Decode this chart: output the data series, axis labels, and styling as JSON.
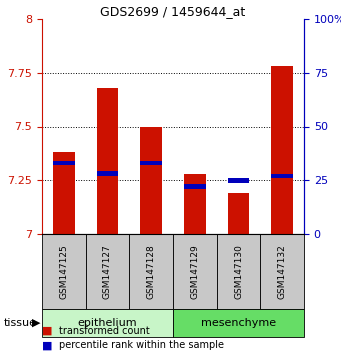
{
  "title": "GDS2699 / 1459644_at",
  "samples": [
    "GSM147125",
    "GSM147127",
    "GSM147128",
    "GSM147129",
    "GSM147130",
    "GSM147132"
  ],
  "red_values": [
    7.38,
    7.68,
    7.5,
    7.28,
    7.19,
    7.78
  ],
  "blue_values": [
    7.33,
    7.28,
    7.33,
    7.22,
    7.25,
    7.27
  ],
  "ylim": [
    7.0,
    8.0
  ],
  "yticks": [
    7.0,
    7.25,
    7.5,
    7.75,
    8.0
  ],
  "ytick_labels": [
    "7",
    "7.25",
    "7.5",
    "7.75",
    "8"
  ],
  "right_yticks": [
    0,
    25,
    50,
    75,
    100
  ],
  "right_ytick_labels": [
    "0",
    "25",
    "50",
    "75",
    "100%"
  ],
  "tissue_groups": [
    {
      "label": "epithelium",
      "start": 0,
      "end": 3,
      "color": "#c8f5c8"
    },
    {
      "label": "mesenchyme",
      "start": 3,
      "end": 6,
      "color": "#66dd66"
    }
  ],
  "bar_width": 0.5,
  "red_color": "#cc1100",
  "blue_color": "#0000bb",
  "label_area_color": "#c8c8c8",
  "left_axis_color": "#cc1100",
  "right_axis_color": "#0000bb",
  "grid_dotted_ticks": [
    7.25,
    7.5,
    7.75
  ]
}
